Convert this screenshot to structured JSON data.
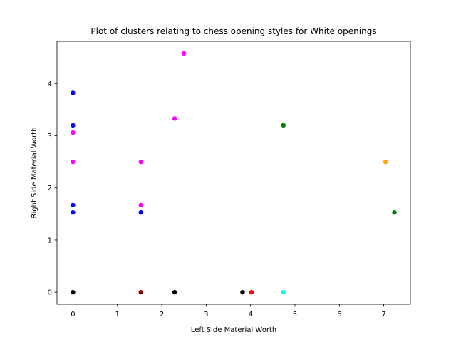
{
  "chart_data": {
    "type": "scatter",
    "title": "Plot of clusters relating to chess opening styles for White openings",
    "xlabel": "Left Side Material Worth",
    "ylabel": "Right Side Material Worth",
    "xlim": [
      -0.36,
      7.6
    ],
    "ylim": [
      -0.23,
      4.81
    ],
    "xticks": [
      0,
      1,
      2,
      3,
      4,
      5,
      6,
      7
    ],
    "yticks": [
      0,
      1,
      2,
      3,
      4
    ],
    "grid": false,
    "legend": "none",
    "points": [
      {
        "x": 0,
        "y": 3.82,
        "color": "#0000ff"
      },
      {
        "x": 0,
        "y": 3.2,
        "color": "#0000ff"
      },
      {
        "x": 0,
        "y": 1.67,
        "color": "#0000ff"
      },
      {
        "x": 0,
        "y": 1.53,
        "color": "#0000ff"
      },
      {
        "x": 1.53,
        "y": 1.53,
        "color": "#0000ff"
      },
      {
        "x": 0,
        "y": 3.06,
        "color": "#ff00ff"
      },
      {
        "x": 0,
        "y": 2.5,
        "color": "#ff00ff"
      },
      {
        "x": 1.53,
        "y": 2.5,
        "color": "#ff00ff"
      },
      {
        "x": 1.53,
        "y": 1.67,
        "color": "#ff00ff"
      },
      {
        "x": 2.29,
        "y": 3.33,
        "color": "#ff00ff"
      },
      {
        "x": 2.5,
        "y": 4.58,
        "color": "#ff00ff"
      },
      {
        "x": 4.74,
        "y": 3.2,
        "color": "#008000"
      },
      {
        "x": 7.24,
        "y": 1.53,
        "color": "#008000"
      },
      {
        "x": 7.04,
        "y": 2.5,
        "color": "#ffa500"
      },
      {
        "x": 4.02,
        "y": 0,
        "color": "#ff0000"
      },
      {
        "x": 4.74,
        "y": 0,
        "color": "#00ffff"
      },
      {
        "x": 1.53,
        "y": 0,
        "color": "#8b0000"
      },
      {
        "x": 0,
        "y": 0,
        "color": "#000000"
      },
      {
        "x": 2.29,
        "y": 0,
        "color": "#000000"
      },
      {
        "x": 3.82,
        "y": 0,
        "color": "#000000"
      }
    ]
  }
}
